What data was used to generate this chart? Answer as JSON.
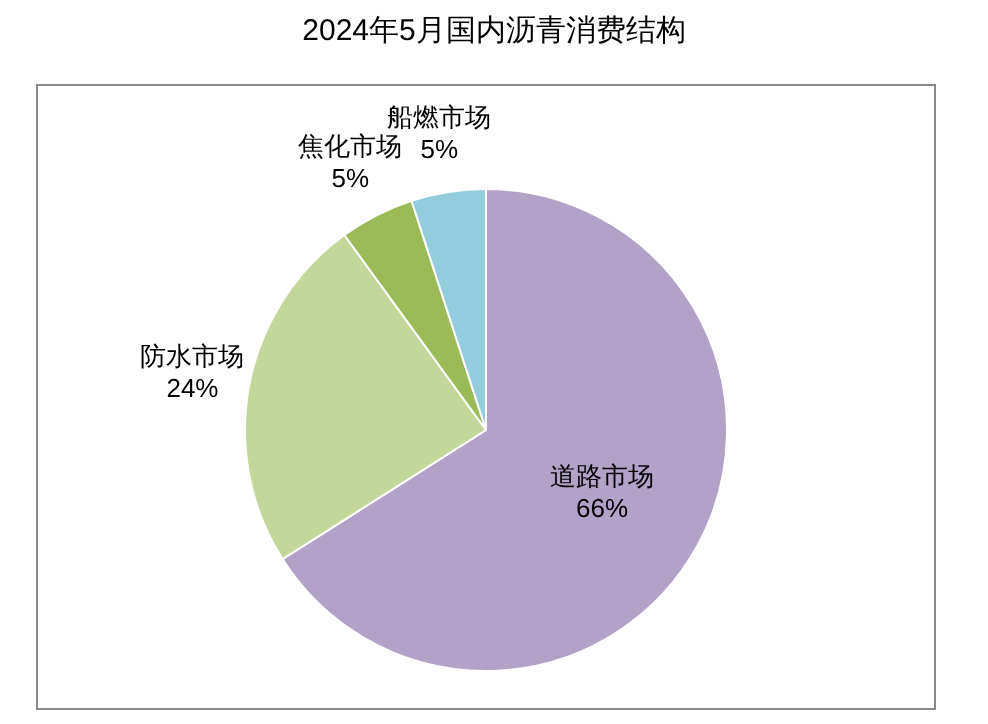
{
  "chart_data": {
    "type": "pie",
    "title": "2024年5月国内沥青消费结构",
    "categories": [
      "道路市场",
      "防水市场",
      "焦化市场",
      "船燃市场"
    ],
    "values": [
      66,
      24,
      5,
      5
    ],
    "value_labels": [
      "66%",
      "24%",
      "5%",
      "5%"
    ],
    "colors": [
      "#b3a2c7",
      "#c4d79b",
      "#9bbb59",
      "#93cddd"
    ],
    "legend": false
  }
}
